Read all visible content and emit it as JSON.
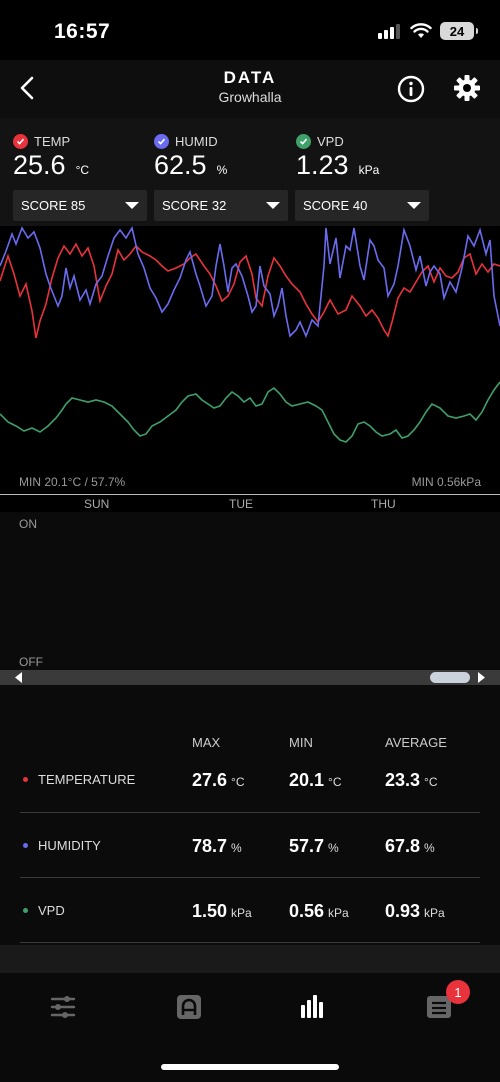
{
  "status_bar": {
    "time": "16:57",
    "battery": "24"
  },
  "header": {
    "title": "DATA",
    "subtitle": "Growhalla"
  },
  "readings": [
    {
      "label": "TEMP",
      "value": "25.6",
      "unit": "°C",
      "color": "#e8323c",
      "score": "SCORE 85"
    },
    {
      "label": "HUMID",
      "value": "62.5",
      "unit": "%",
      "color": "#6b6bf0",
      "score": "SCORE 32"
    },
    {
      "label": "VPD",
      "value": "1.23",
      "unit": "kPa",
      "color": "#3fa06a",
      "score": "SCORE 40"
    }
  ],
  "chart_data": {
    "type": "line",
    "min_left": "MIN 20.1°C / 57.7%",
    "min_right": "MIN 0.56kPa",
    "days": [
      "SUN",
      "TUE",
      "THU"
    ],
    "series": [
      {
        "name": "TEMP",
        "color": "#e8323c"
      },
      {
        "name": "HUMID",
        "color": "#6b6bf0"
      },
      {
        "name": "VPD",
        "color": "#3fa06a"
      }
    ]
  },
  "switch": {
    "on": "ON",
    "off": "OFF"
  },
  "stats": {
    "headers": {
      "max": "MAX",
      "min": "MIN",
      "avg": "AVERAGE"
    },
    "rows": [
      {
        "label": "TEMPERATURE",
        "color": "#e8323c",
        "max": "27.6",
        "min": "20.1",
        "avg": "23.3",
        "unit": "°C"
      },
      {
        "label": "HUMIDITY",
        "color": "#6b6bf0",
        "max": "78.7",
        "min": "57.7",
        "avg": "67.8",
        "unit": "%"
      },
      {
        "label": "VPD",
        "color": "#3fa06a",
        "max": "1.50",
        "min": "0.56",
        "avg": "0.93",
        "unit": "kPa"
      }
    ]
  },
  "tabbar": {
    "badge": "1"
  }
}
